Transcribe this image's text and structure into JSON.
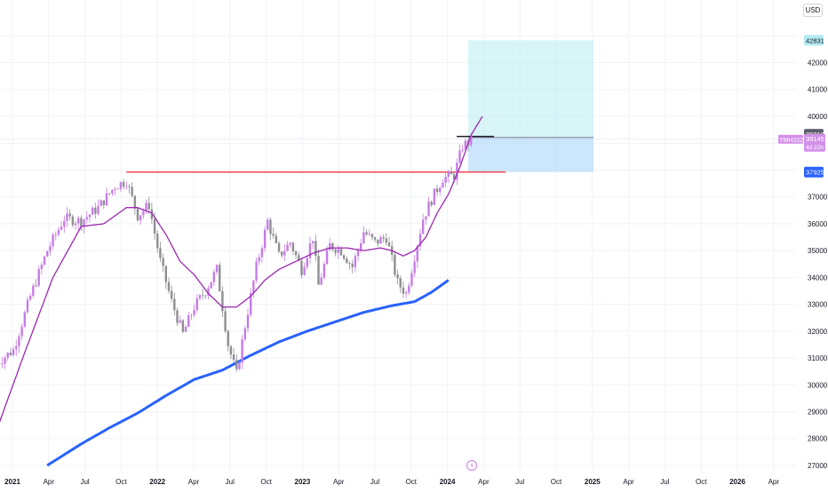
{
  "chart_data": {
    "type": "candlestick",
    "currency": "USD",
    "symbol": "YMH2024",
    "price_axis": {
      "ticks": [
        27000,
        28000,
        29000,
        30000,
        31000,
        32000,
        33000,
        34000,
        35000,
        36000,
        37000,
        38000,
        39000,
        40000,
        41000,
        42000,
        43000
      ],
      "labels": [
        "27000",
        "28000",
        "29000",
        "30000",
        "31000",
        "32000",
        "33000",
        "34000",
        "35000",
        "36000",
        "37000",
        "",
        "",
        "40000",
        "41000",
        "42000",
        ""
      ],
      "ylim": [
        26800,
        44200
      ]
    },
    "time_axis": {
      "labels": [
        "2021",
        "Apr",
        "Jul",
        "Oct",
        "2022",
        "Apr",
        "Jul",
        "Oct",
        "2023",
        "Apr",
        "Jul",
        "Oct",
        "2024",
        "Apr",
        "Jul",
        "Oct",
        "2025",
        "Apr",
        "Jul",
        "Oct",
        "2026",
        "Apr"
      ],
      "bold": [
        "2021",
        "2022",
        "2023",
        "2024",
        "2025",
        "2026"
      ]
    },
    "price_badges": {
      "target": "42831",
      "marker": "39212",
      "last_symbol": "YMH2024",
      "last_price": "39145",
      "countdown": "4d 22h",
      "stop": "37925"
    },
    "position_tool": {
      "entry": 39212,
      "target": 42831,
      "stop": 37925
    },
    "resistance_level": 37925,
    "colors": {
      "up": "#c67ce6",
      "down": "#8e8e93",
      "ma_fast": "#9c27b0",
      "ma_slow": "#2962ff",
      "resistance": "#f23645",
      "profit_zone": "#b2ebf2",
      "loss_zone": "#bbdefb",
      "grid": "#f0f3fa",
      "axis_text": "#131722"
    },
    "series": [
      {
        "name": "",
        "kind": "ohlc",
        "note_source": "weekly candles",
        "anchors": [
          [
            0,
            30800
          ],
          [
            6,
            31300
          ],
          [
            12,
            33300
          ],
          [
            18,
            35000
          ],
          [
            24,
            36200
          ],
          [
            30,
            36100
          ],
          [
            36,
            36600
          ],
          [
            42,
            37400
          ],
          [
            46,
            37600
          ],
          [
            50,
            36300
          ],
          [
            54,
            36700
          ],
          [
            58,
            34600
          ],
          [
            62,
            33100
          ],
          [
            66,
            31900
          ],
          [
            70,
            32900
          ],
          [
            74,
            33500
          ],
          [
            78,
            34300
          ],
          [
            82,
            31500
          ],
          [
            85,
            30400
          ],
          [
            88,
            32200
          ],
          [
            92,
            34400
          ],
          [
            96,
            36100
          ],
          [
            100,
            34800
          ],
          [
            104,
            35300
          ],
          [
            108,
            34300
          ],
          [
            112,
            35500
          ],
          [
            114,
            33700
          ],
          [
            118,
            35200
          ],
          [
            122,
            35000
          ],
          [
            126,
            34400
          ],
          [
            130,
            35700
          ],
          [
            134,
            35300
          ],
          [
            138,
            35500
          ],
          [
            142,
            33800
          ],
          [
            145,
            33400
          ],
          [
            148,
            34800
          ],
          [
            151,
            36200
          ],
          [
            154,
            36900
          ],
          [
            158,
            37700
          ],
          [
            162,
            37800
          ],
          [
            165,
            38900
          ],
          [
            168,
            39100
          ]
        ]
      },
      {
        "name": "",
        "kind": "line",
        "color_key": "ma_fast",
        "points": [
          [
            0,
            28300
          ],
          [
            10,
            31200
          ],
          [
            20,
            34000
          ],
          [
            30,
            35900
          ],
          [
            38,
            36000
          ],
          [
            42,
            36300
          ],
          [
            46,
            36600
          ],
          [
            50,
            36600
          ],
          [
            55,
            36400
          ],
          [
            60,
            35600
          ],
          [
            65,
            34600
          ],
          [
            70,
            34100
          ],
          [
            75,
            33400
          ],
          [
            80,
            32900
          ],
          [
            85,
            32900
          ],
          [
            90,
            33300
          ],
          [
            95,
            33900
          ],
          [
            100,
            34300
          ],
          [
            104,
            34500
          ],
          [
            108,
            34700
          ],
          [
            112,
            34900
          ],
          [
            118,
            35100
          ],
          [
            124,
            35100
          ],
          [
            130,
            35000
          ],
          [
            136,
            35100
          ],
          [
            140,
            35000
          ],
          [
            144,
            34800
          ],
          [
            148,
            35000
          ],
          [
            152,
            35500
          ],
          [
            156,
            36400
          ],
          [
            160,
            37100
          ],
          [
            164,
            38100
          ],
          [
            168,
            39300
          ],
          [
            172,
            40000
          ]
        ]
      },
      {
        "name": "",
        "kind": "line",
        "color_key": "ma_slow",
        "points": [
          [
            18,
            27000
          ],
          [
            30,
            27800
          ],
          [
            40,
            28400
          ],
          [
            50,
            28950
          ],
          [
            60,
            29600
          ],
          [
            70,
            30200
          ],
          [
            80,
            30550
          ],
          [
            90,
            31100
          ],
          [
            100,
            31600
          ],
          [
            110,
            32000
          ],
          [
            120,
            32350
          ],
          [
            130,
            32700
          ],
          [
            140,
            32950
          ],
          [
            148,
            33100
          ],
          [
            154,
            33450
          ],
          [
            160,
            33900
          ]
        ]
      }
    ]
  }
}
